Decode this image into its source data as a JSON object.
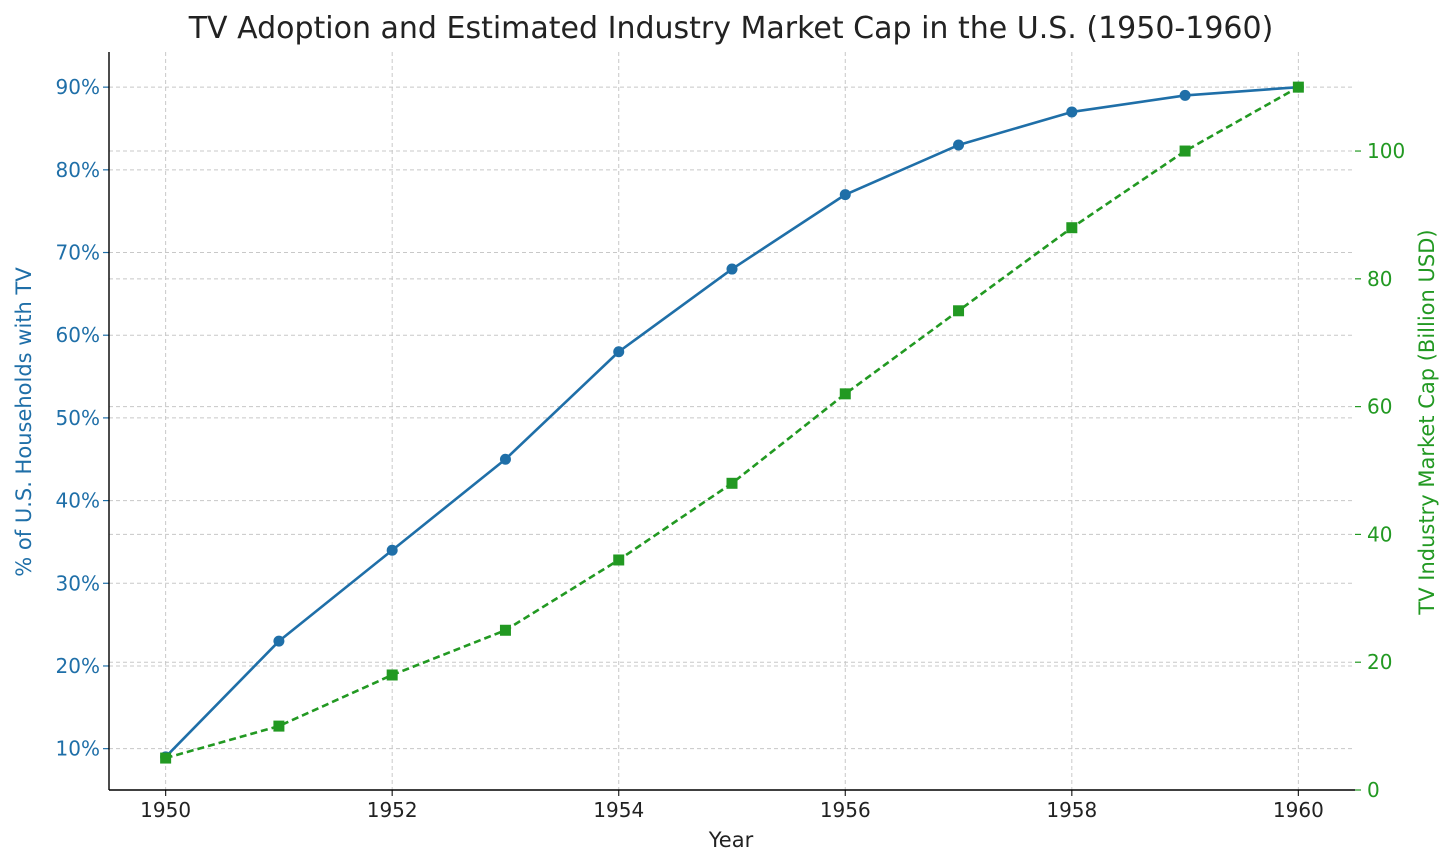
{
  "chart_data": {
    "type": "line",
    "title": "TV Adoption and Estimated Industry Market Cap in the U.S. (1950-1960)",
    "xlabel": "Year",
    "ylabel_left": "% of U.S. Households with TV",
    "ylabel_right": "TV Industry Market Cap (Billion USD)",
    "x": [
      1950,
      1951,
      1952,
      1953,
      1954,
      1955,
      1956,
      1957,
      1958,
      1959,
      1960
    ],
    "x_ticks": [
      "1950",
      "1952",
      "1954",
      "1956",
      "1958",
      "1960"
    ],
    "y_left_ticks": [
      "10%",
      "20%",
      "30%",
      "40%",
      "50%",
      "60%",
      "70%",
      "80%",
      "90%"
    ],
    "y_right_ticks": [
      "0",
      "20",
      "40",
      "60",
      "80",
      "100"
    ],
    "grid": true,
    "series": [
      {
        "axis": "left",
        "values": [
          9,
          23,
          34,
          45,
          58,
          68,
          77,
          83,
          87,
          89,
          90
        ],
        "color": "#1f6fa8",
        "line_style": "solid",
        "marker": "circle"
      },
      {
        "axis": "right",
        "values": [
          5,
          10,
          18,
          25,
          36,
          48,
          62,
          75,
          88,
          100,
          110
        ],
        "color": "#229922",
        "line_style": "dashed",
        "marker": "square"
      }
    ],
    "colors": {
      "left_axis": "#1f6fa8",
      "right_axis": "#229922",
      "x_axis": "#222222",
      "title": "#222222"
    }
  }
}
